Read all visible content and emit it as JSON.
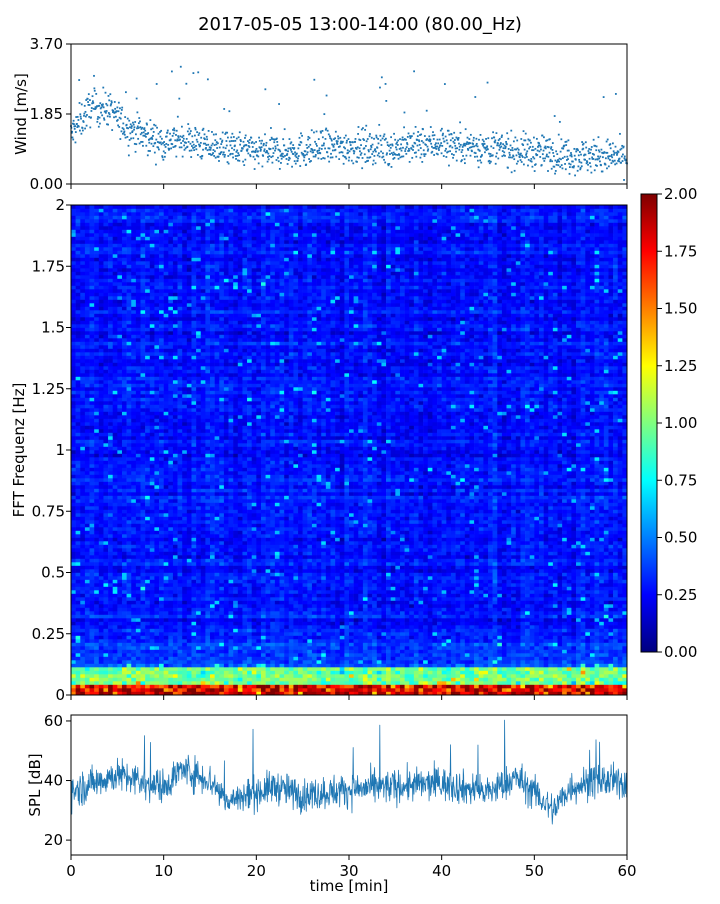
{
  "figure": {
    "title": "2017-05-05 13:00-14:00 (80.00_Hz)"
  },
  "colors": {
    "series": "#1f77b4",
    "colormap": [
      "#00007f",
      "#0000ff",
      "#007fff",
      "#00ffff",
      "#7fff7f",
      "#ffff00",
      "#ff7f00",
      "#ff0000",
      "#7f0000"
    ]
  },
  "chart_data": [
    {
      "type": "scatter",
      "ylabel": "Wind [m/s]",
      "xlim": [
        0,
        60
      ],
      "ylim": [
        0,
        3.7
      ],
      "yticks": [
        "0.00",
        "1.85",
        "3.70"
      ],
      "ytick_values": [
        0,
        1.85,
        3.7
      ],
      "x_ticklabels_shown": false,
      "grid": false,
      "mean_trend": {
        "x": [
          0,
          2,
          4,
          6,
          10,
          12,
          15,
          20,
          25,
          30,
          35,
          40,
          45,
          50,
          55,
          60
        ],
        "y": [
          1.3,
          2.0,
          2.0,
          1.5,
          1.1,
          1.2,
          1.0,
          0.85,
          0.9,
          1.0,
          0.95,
          1.1,
          0.95,
          0.85,
          0.75,
          0.7
        ]
      }
    },
    {
      "type": "heatmap",
      "ylabel": "FFT Frequenz [Hz]",
      "xlim": [
        0,
        60
      ],
      "ylim": [
        0,
        2
      ],
      "yticks": [
        "0",
        "0.25",
        "0.5",
        "0.75",
        "1",
        "1.25",
        "1.5",
        "1.75",
        "2"
      ],
      "ytick_values": [
        0,
        0.25,
        0.5,
        0.75,
        1,
        1.25,
        1.5,
        1.75,
        2
      ],
      "colorbar": {
        "range": [
          0,
          2
        ],
        "ticks": [
          "0.00",
          "0.25",
          "0.50",
          "0.75",
          "1.00",
          "1.25",
          "1.50",
          "1.75",
          "2.00"
        ],
        "tick_values": [
          0,
          0.25,
          0.5,
          0.75,
          1,
          1.25,
          1.5,
          1.75,
          2
        ]
      },
      "x_ticklabels_shown": false
    },
    {
      "type": "line",
      "ylabel": "SPL [dB]",
      "xlabel": "time [min]",
      "xlim": [
        0,
        60
      ],
      "ylim": [
        15,
        62
      ],
      "yticks": [
        "20",
        "40",
        "60"
      ],
      "ytick_values": [
        20,
        40,
        60
      ],
      "xticks": [
        "0",
        "10",
        "20",
        "30",
        "40",
        "50",
        "60"
      ],
      "xtick_values": [
        0,
        10,
        20,
        30,
        40,
        50,
        60
      ],
      "grid": false,
      "mean_trend": {
        "x": [
          0,
          3,
          5,
          8,
          10,
          12,
          15,
          17,
          20,
          22,
          25,
          30,
          35,
          40,
          45,
          48,
          50,
          52,
          54,
          57,
          60
        ],
        "y": [
          36,
          40,
          42,
          39,
          38,
          44,
          40,
          33,
          36,
          38,
          35,
          37,
          38,
          39,
          36,
          41,
          36,
          30,
          38,
          40,
          39
        ]
      }
    }
  ]
}
